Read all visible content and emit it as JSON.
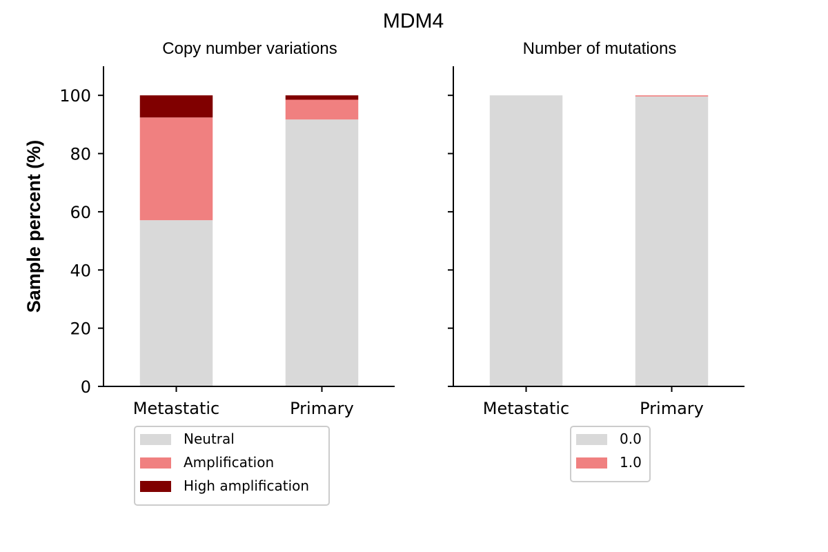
{
  "suptitle": "MDM4",
  "ylabel": "Sample percent (%)",
  "colors": {
    "neutral": "#d9d9d9",
    "amplification": "#f08080",
    "high_amplification": "#800000"
  },
  "chart_data": [
    {
      "type": "bar",
      "stacked": true,
      "title": "Copy number variations",
      "xlabel": "",
      "ylabel": "Sample percent (%)",
      "categories": [
        "Metastatic",
        "Primary"
      ],
      "ylim": [
        0,
        110
      ],
      "yticks": [
        0,
        20,
        40,
        60,
        80,
        100
      ],
      "grid": false,
      "legend_position": "bottom",
      "series": [
        {
          "name": "Neutral",
          "color": "#d9d9d9",
          "values": [
            57.1,
            91.7
          ]
        },
        {
          "name": "Amplification",
          "color": "#f08080",
          "values": [
            35.3,
            6.8
          ]
        },
        {
          "name": "High amplification",
          "color": "#800000",
          "values": [
            7.6,
            1.5
          ]
        }
      ]
    },
    {
      "type": "bar",
      "stacked": true,
      "title": "Number of mutations",
      "xlabel": "",
      "ylabel": "",
      "categories": [
        "Metastatic",
        "Primary"
      ],
      "ylim": [
        0,
        110
      ],
      "yticks": [
        0,
        20,
        40,
        60,
        80,
        100
      ],
      "show_ytick_labels": false,
      "grid": false,
      "legend_position": "bottom",
      "series": [
        {
          "name": "0.0",
          "color": "#d9d9d9",
          "values": [
            100.0,
            99.6
          ]
        },
        {
          "name": "1.0",
          "color": "#f08080",
          "values": [
            0.0,
            0.4
          ]
        }
      ]
    }
  ]
}
